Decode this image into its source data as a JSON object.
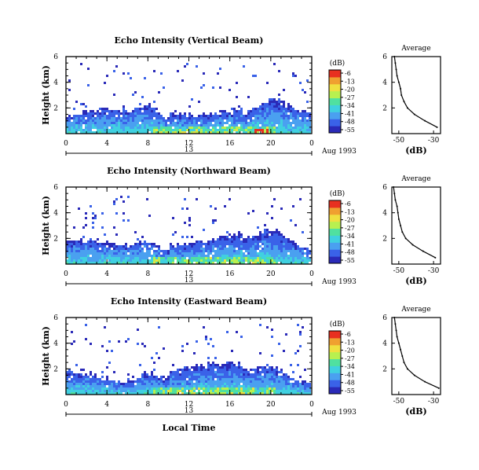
{
  "chart_data": {
    "type": "heatmap",
    "x_axis": {
      "ticks": [
        "0",
        "4",
        "8",
        "12",
        "16",
        "20",
        "0"
      ],
      "range_hours": [
        0,
        24
      ],
      "day_label": "13",
      "date_label": "Aug 1993",
      "xlabel": "Local Time"
    },
    "y_axis": {
      "ylabel": "Height (km)",
      "ticks": [
        "2",
        "4",
        "6"
      ],
      "range_km": [
        0,
        6
      ]
    },
    "colorbar": {
      "unit": "(dB)",
      "ticks": [
        "-6",
        "-13",
        "-20",
        "-27",
        "-34",
        "-41",
        "-48",
        "-55"
      ],
      "range_db": [
        -55,
        -6
      ],
      "colors": [
        "#2a2ab8",
        "#3a62e8",
        "#4aa0f0",
        "#40d0e0",
        "#50e0a0",
        "#b8f050",
        "#f0e040",
        "#f0a030",
        "#e83020"
      ]
    },
    "panels": [
      {
        "title": "Echo Intensity (Vertical Beam)",
        "profile": {
          "title": "Average",
          "xlabel": "(dB)",
          "xticks": [
            "-50",
            "-30"
          ],
          "yticks": [
            "2",
            "4",
            "6"
          ],
          "x_range_db": [
            -54,
            -26
          ],
          "heights_km": [
            0.5,
            1.0,
            1.5,
            2.0,
            2.5,
            3.0,
            3.5,
            4.0,
            4.5,
            5.0,
            5.5,
            6.0
          ],
          "db": [
            -28,
            -35,
            -41,
            -45,
            -47,
            -48.5,
            -49,
            -50,
            -51,
            -51.5,
            -52,
            -52.5
          ]
        }
      },
      {
        "title": "Echo Intensity (Northward Beam)",
        "profile": {
          "title": "Average",
          "xlabel": "(dB)",
          "xticks": [
            "-50",
            "-30"
          ],
          "yticks": [
            "2",
            "4",
            "6"
          ],
          "x_range_db": [
            -54,
            -26
          ],
          "heights_km": [
            0.5,
            1.0,
            1.5,
            2.0,
            2.5,
            3.0,
            3.5,
            4.0,
            4.5,
            5.0,
            5.5,
            6.0
          ],
          "db": [
            -29,
            -36,
            -42,
            -46,
            -48,
            -49,
            -50,
            -50.5,
            -51,
            -52,
            -52.5,
            -53
          ]
        }
      },
      {
        "title": "Echo Intensity (Eastward Beam)",
        "profile": {
          "title": "Average",
          "xlabel": "(dB)",
          "xticks": [
            "-50",
            "-30"
          ],
          "yticks": [
            "2",
            "4",
            "6"
          ],
          "x_range_db": [
            -54,
            -26
          ],
          "heights_km": [
            0.5,
            1.0,
            1.5,
            2.0,
            2.5,
            3.0,
            3.5,
            4.0,
            4.5,
            5.0,
            5.5,
            6.0
          ],
          "db": [
            -27,
            -35,
            -41,
            -45,
            -47,
            -48,
            -49,
            -50,
            -51,
            -51.5,
            -52,
            -52.5
          ]
        }
      }
    ]
  }
}
